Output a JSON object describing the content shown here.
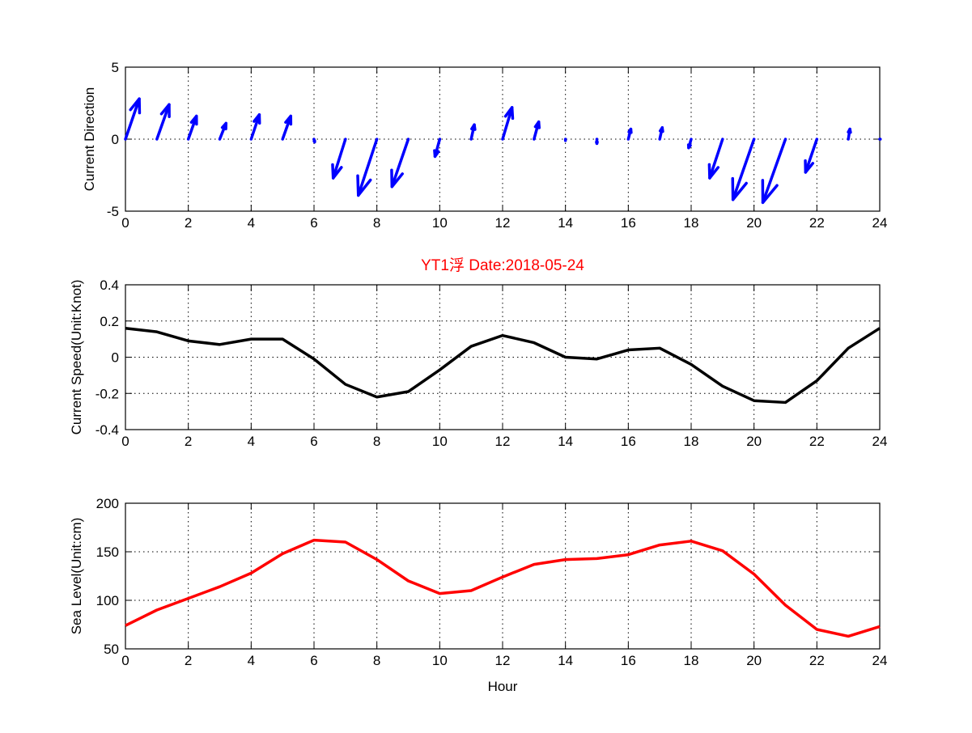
{
  "chart_data": [
    {
      "type": "quiver",
      "title": "",
      "xlabel": "",
      "ylabel": "Current Direction",
      "xlim": [
        0,
        24
      ],
      "ylim": [
        -5,
        5
      ],
      "xticks": [
        "0",
        "2",
        "4",
        "6",
        "8",
        "10",
        "12",
        "14",
        "16",
        "18",
        "20",
        "22",
        "24"
      ],
      "yticks": [
        "-5",
        "0",
        "5"
      ],
      "ytick_values": [
        -5,
        0,
        5
      ],
      "color": "#0000ff",
      "x": [
        0,
        1,
        2,
        3,
        4,
        5,
        6,
        7,
        8,
        9,
        10,
        11,
        12,
        13,
        14,
        15,
        16,
        17,
        18,
        19,
        20,
        21,
        22,
        23,
        24
      ],
      "u": [
        0.44,
        0.39,
        0.26,
        0.2,
        0.26,
        0.26,
        0.02,
        -0.39,
        -0.59,
        -0.52,
        -0.15,
        0.1,
        0.3,
        0.15,
        0.0,
        0.0,
        0.08,
        0.08,
        -0.08,
        -0.41,
        -0.67,
        -0.72,
        -0.36,
        0.05,
        0.02
      ],
      "v": [
        2.8,
        2.4,
        1.6,
        1.1,
        1.7,
        1.6,
        -0.2,
        -2.7,
        -3.9,
        -3.3,
        -1.2,
        1.0,
        2.2,
        1.2,
        -0.1,
        -0.3,
        0.7,
        0.8,
        -0.6,
        -2.7,
        -4.2,
        -4.4,
        -2.3,
        0.7,
        0.0
      ],
      "grid": true
    },
    {
      "type": "line",
      "title": "YT1浮   Date:2018-05-24",
      "title_color": "#ff0000",
      "xlabel": "",
      "ylabel": "Current Speed(Unit:Knot)",
      "xlim": [
        0,
        24
      ],
      "ylim": [
        -0.4,
        0.4
      ],
      "xticks": [
        "0",
        "2",
        "4",
        "6",
        "8",
        "10",
        "12",
        "14",
        "16",
        "18",
        "20",
        "22",
        "24"
      ],
      "yticks": [
        "-0.4",
        "-0.2",
        "0",
        "0.2",
        "0.4"
      ],
      "ytick_values": [
        -0.4,
        -0.2,
        0,
        0.2,
        0.4
      ],
      "color": "#000000",
      "x": [
        0,
        1,
        2,
        3,
        4,
        5,
        6,
        7,
        8,
        9,
        10,
        11,
        12,
        13,
        14,
        15,
        16,
        17,
        18,
        19,
        20,
        21,
        22,
        23,
        24
      ],
      "y": [
        0.16,
        0.14,
        0.09,
        0.07,
        0.1,
        0.1,
        -0.01,
        -0.15,
        -0.22,
        -0.19,
        -0.07,
        0.06,
        0.12,
        0.08,
        0.0,
        -0.01,
        0.04,
        0.05,
        -0.04,
        -0.16,
        -0.24,
        -0.25,
        -0.13,
        0.05,
        0.16
      ],
      "grid": true
    },
    {
      "type": "line",
      "title": "",
      "xlabel": "Hour",
      "ylabel": "Sea Level(Unit:cm)",
      "xlim": [
        0,
        24
      ],
      "ylim": [
        50,
        200
      ],
      "xticks": [
        "0",
        "2",
        "4",
        "6",
        "8",
        "10",
        "12",
        "14",
        "16",
        "18",
        "20",
        "22",
        "24"
      ],
      "yticks": [
        "50",
        "100",
        "150",
        "200"
      ],
      "ytick_values": [
        50,
        100,
        150,
        200
      ],
      "color": "#ff0000",
      "x": [
        0,
        1,
        2,
        3,
        4,
        5,
        6,
        7,
        8,
        9,
        10,
        11,
        12,
        13,
        14,
        15,
        16,
        17,
        18,
        19,
        20,
        21,
        22,
        23,
        24
      ],
      "y": [
        74,
        90,
        102,
        114,
        128,
        148,
        162,
        160,
        142,
        120,
        107,
        110,
        124,
        137,
        142,
        143,
        147,
        157,
        161,
        151,
        127,
        95,
        70,
        63,
        73
      ],
      "grid": true
    }
  ]
}
